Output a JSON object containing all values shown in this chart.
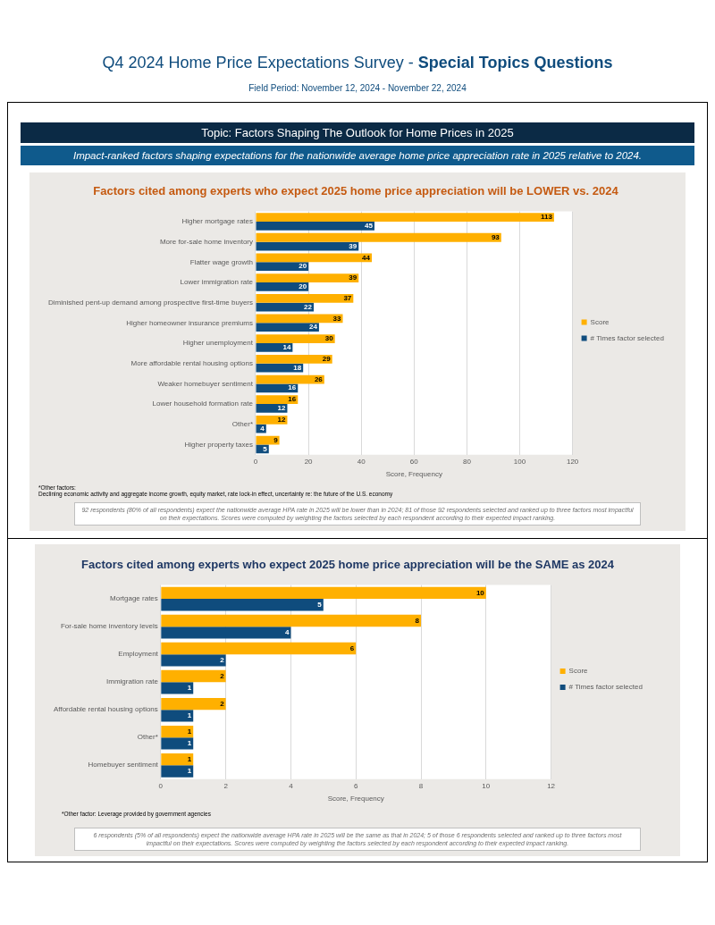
{
  "chart_data": [
    {
      "type": "bar",
      "orientation": "horizontal",
      "title": "Factors cited among experts who expect 2025 home price appreciation will be LOWER vs. 2024",
      "xlabel": "Score, Frequency",
      "categories": [
        "Higher mortgage rates",
        "More for-sale home inventory",
        "Flatter wage growth",
        "Lower immigration rate",
        "Diminished pent-up demand among prospective first-time buyers",
        "Higher homeowner insurance premiums",
        "Higher unemployment",
        "More affordable rental housing options",
        "Weaker homebuyer sentiment",
        "Lower household formation rate",
        "Other*",
        "Higher property taxes"
      ],
      "series": [
        {
          "name": "Score",
          "color": "#ffb000",
          "values": [
            113,
            93,
            44,
            39,
            37,
            33,
            30,
            29,
            26,
            16,
            12,
            9
          ]
        },
        {
          "name": "# Times factor selected",
          "color": "#0f4c7d",
          "values": [
            45,
            39,
            20,
            20,
            22,
            24,
            14,
            18,
            16,
            12,
            4,
            5
          ]
        }
      ],
      "xlim": [
        0,
        120
      ],
      "xticks": [
        0,
        20,
        40,
        60,
        80,
        100,
        120
      ],
      "grid": "x",
      "legend": "right",
      "data_labels": true,
      "annotations": [
        "Q4 2024 Home Price Expectations Survey - ",
        "Special Topics Questions",
        "Field Period: November 12, 2024 - November 22, 2024",
        "Topic: Factors Shaping The Outlook for Home Prices in 2025",
        "Impact-ranked factors shaping expectations for the nationwide average home price appreciation rate in 2025 relative to 2024.",
        "*Other factors:",
        "Declining economic activity and aggregate income growth, equity market, rate lock-in effect, uncertainty re: the future of the U.S. economy",
        "92 respondents (80% of all respondents) expect the nationwide average HPA rate in 2025 will be lower than in 2024; 81 of those 92 respondents selected and ranked up to three factors most impactful on their expectations. Scores were computed by weighting the factors selected by each respondent according to their expected impact ranking."
      ]
    },
    {
      "type": "bar",
      "orientation": "horizontal",
      "title": "Factors cited among experts who expect 2025 home price appreciation will be the SAME as 2024",
      "xlabel": "Score, Frequency",
      "categories": [
        "Mortgage rates",
        "For-sale home inventory levels",
        "Employment",
        "Immigration rate",
        "Affordable rental housing options",
        "Other*",
        "Homebuyer sentiment"
      ],
      "series": [
        {
          "name": "Score",
          "color": "#ffb000",
          "values": [
            10,
            8,
            6,
            2,
            2,
            1,
            1
          ]
        },
        {
          "name": "# Times factor selected",
          "color": "#0f4c7d",
          "values": [
            5,
            4,
            2,
            1,
            1,
            1,
            1
          ]
        }
      ],
      "xlim": [
        0,
        12
      ],
      "xticks": [
        0,
        2,
        4,
        6,
        8,
        10,
        12
      ],
      "grid": "x",
      "legend": "right",
      "data_labels": true,
      "annotations": [
        "*Other factor: Leverage provided by government agencies",
        "6 respondents (5% of all respondents) expect the nationwide average HPA rate in 2025 will be the same as that in 2024; 5 of those 6 respondents selected and ranked up to three factors most impactful on their expectations. Scores were computed by weighting the factors selected by each respondent according to their expected impact ranking."
      ]
    }
  ]
}
